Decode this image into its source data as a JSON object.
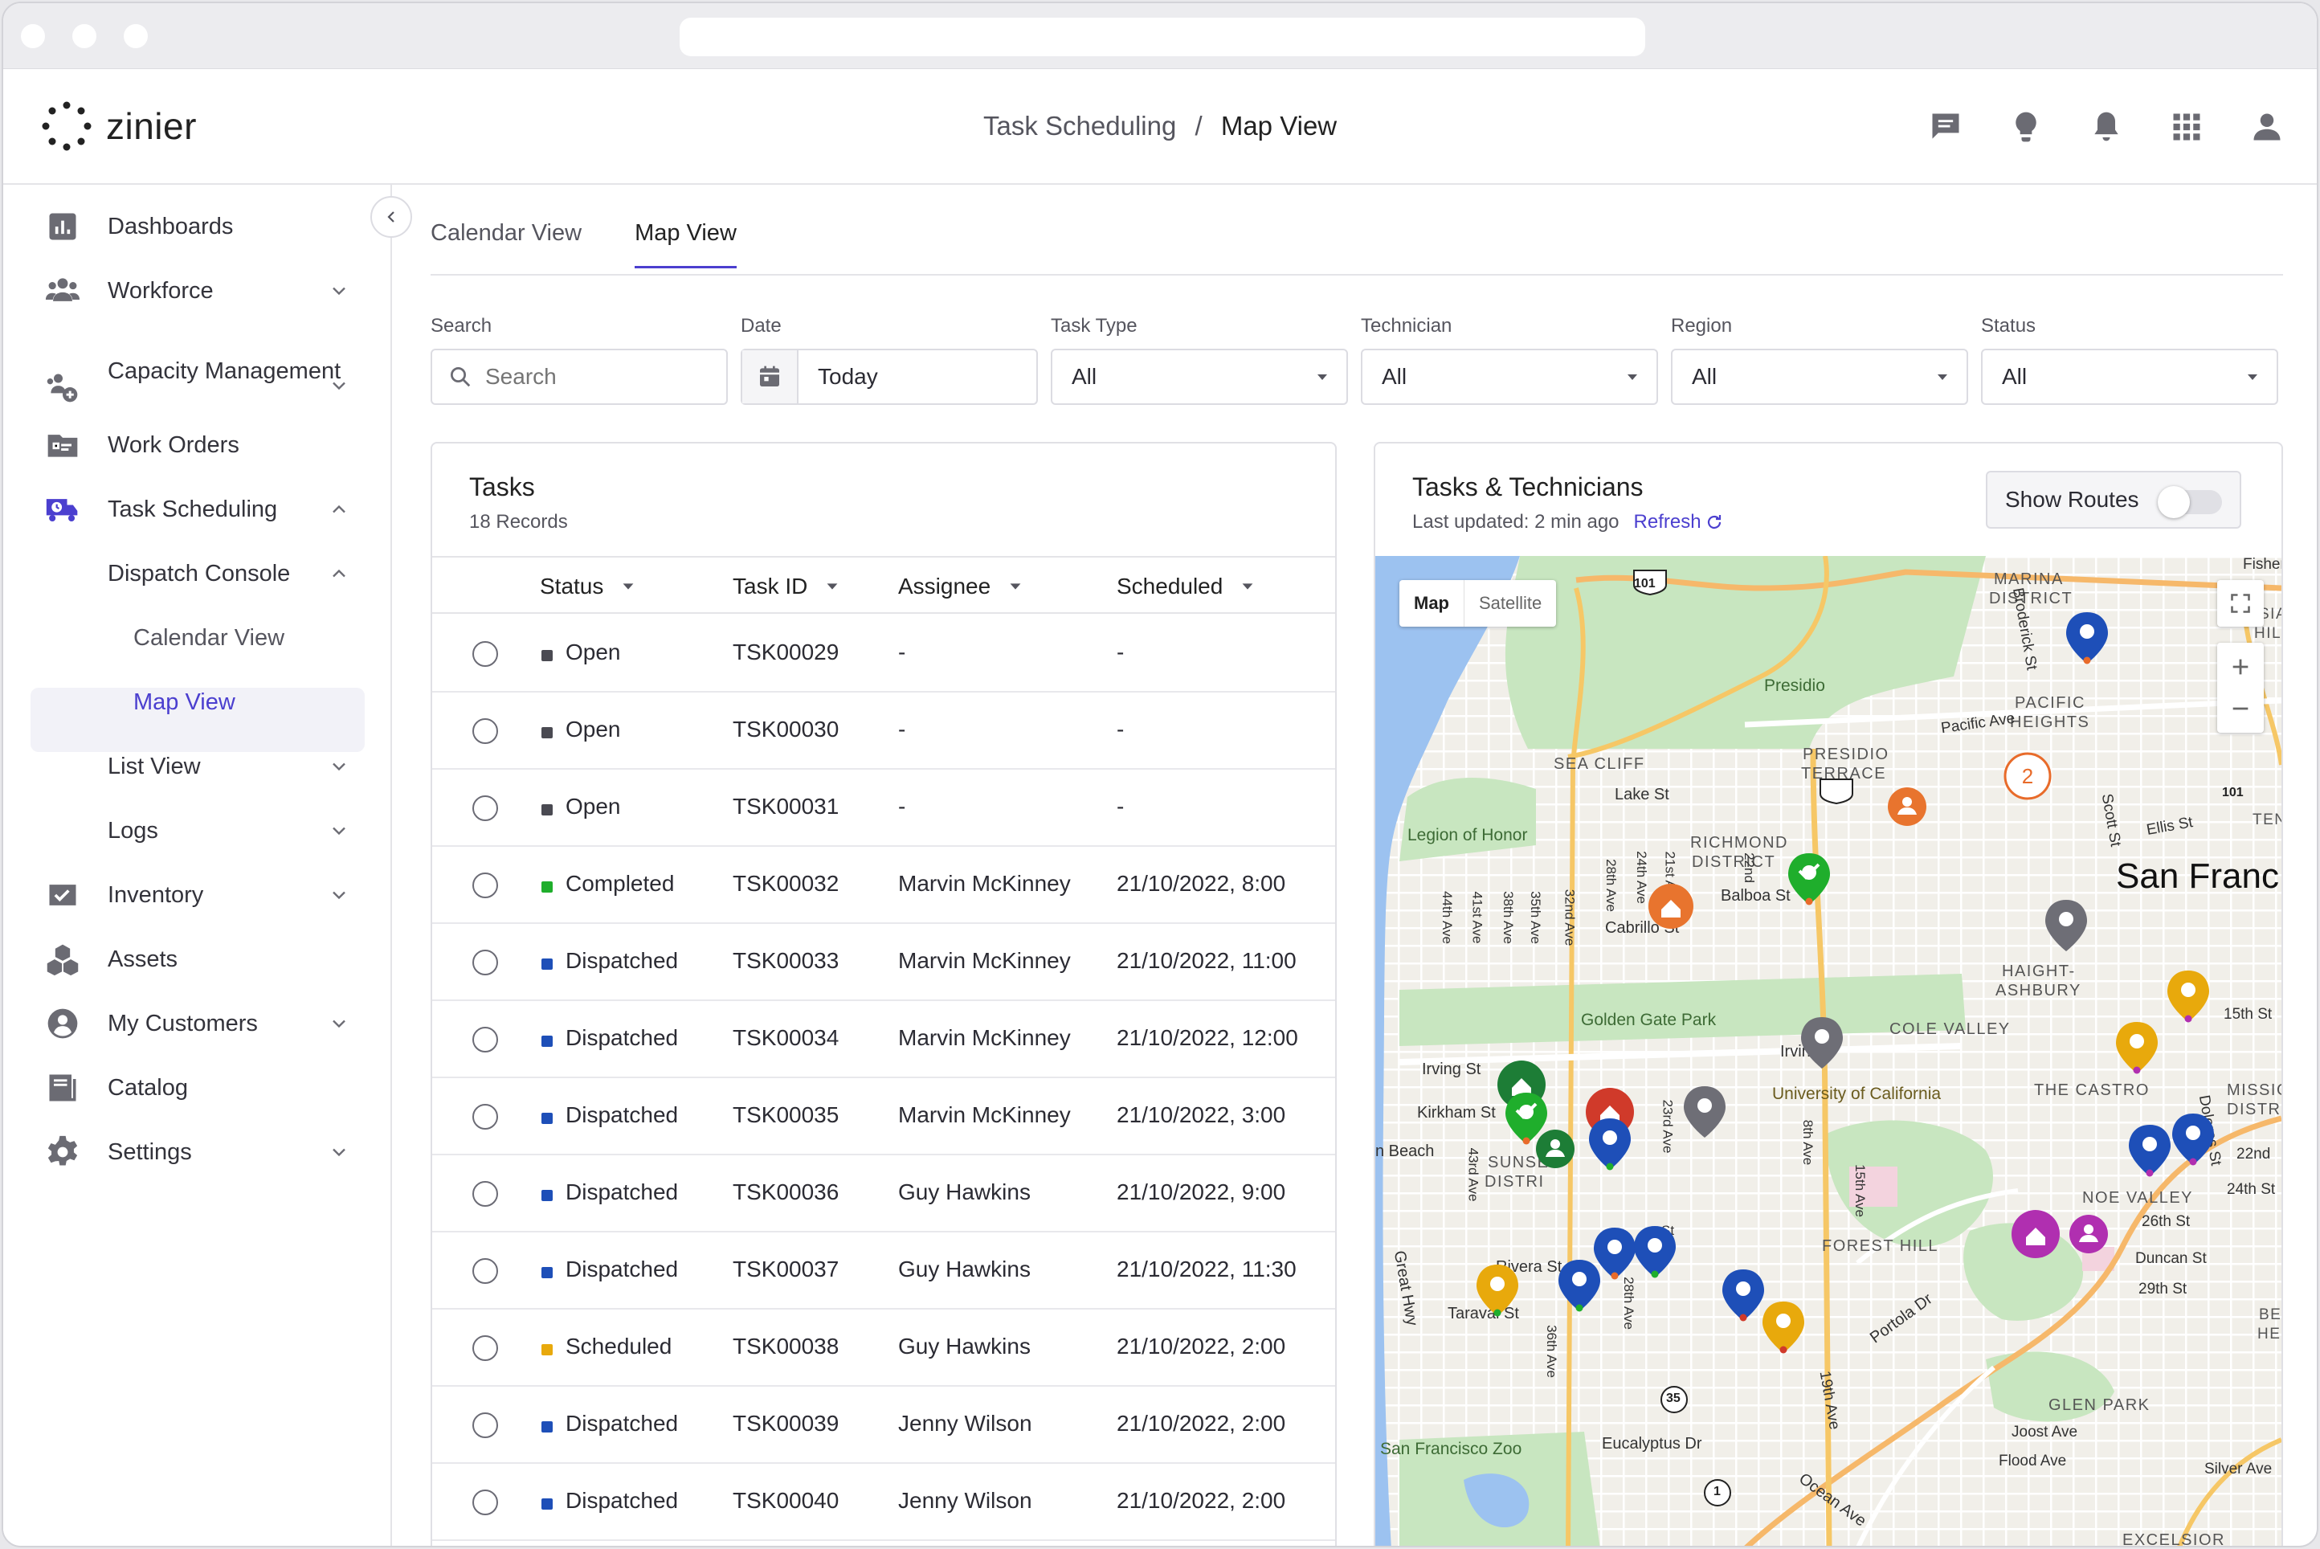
{
  "app": {
    "logo_text": "zinier"
  },
  "breadcrumb": {
    "parent": "Task Scheduling",
    "separator": "/",
    "current": "Map View"
  },
  "sidebar": {
    "items": [
      {
        "label": "Dashboards",
        "icon": "bar-chart-icon"
      },
      {
        "label": "Workforce",
        "icon": "people-icon"
      },
      {
        "label": "Capacity Management",
        "icon": "capacity-icon"
      },
      {
        "label": "Work Orders",
        "icon": "work-orders-icon"
      },
      {
        "label": "Task Scheduling",
        "icon": "truck-clock-icon"
      },
      {
        "label": "Dispatch Console"
      },
      {
        "label": "Calendar View"
      },
      {
        "label": "Map View"
      },
      {
        "label": "List View"
      },
      {
        "label": "Logs"
      },
      {
        "label": "Inventory",
        "icon": "inventory-icon"
      },
      {
        "label": "Assets",
        "icon": "cubes-icon"
      },
      {
        "label": "My Customers",
        "icon": "customer-icon"
      },
      {
        "label": "Catalog",
        "icon": "catalog-icon"
      },
      {
        "label": "Settings",
        "icon": "gear-icon"
      }
    ]
  },
  "tabs": {
    "calendar": "Calendar View",
    "map": "Map View"
  },
  "filters": {
    "search": {
      "label": "Search",
      "placeholder": "Search"
    },
    "date": {
      "label": "Date",
      "value": "Today"
    },
    "task_type": {
      "label": "Task Type",
      "value": "All"
    },
    "technician": {
      "label": "Technician",
      "value": "All"
    },
    "region": {
      "label": "Region",
      "value": "All"
    },
    "status": {
      "label": "Status",
      "value": "All"
    }
  },
  "tasks": {
    "title": "Tasks",
    "records": "18 Records",
    "columns": {
      "status": "Status",
      "task_id": "Task ID",
      "assignee": "Assignee",
      "scheduled": "Scheduled"
    },
    "rows": [
      {
        "status": "Open",
        "color": "#4a4a52",
        "id": "TSK00029",
        "assignee": "-",
        "scheduled": "-"
      },
      {
        "status": "Open",
        "color": "#4a4a52",
        "id": "TSK00030",
        "assignee": "-",
        "scheduled": "-"
      },
      {
        "status": "Open",
        "color": "#4a4a52",
        "id": "TSK00031",
        "assignee": "-",
        "scheduled": "-"
      },
      {
        "status": "Completed",
        "color": "#1fae2c",
        "id": "TSK00032",
        "assignee": "Marvin McKinney",
        "scheduled": "21/10/2022, 8:00"
      },
      {
        "status": "Dispatched",
        "color": "#1e4fb8",
        "id": "TSK00033",
        "assignee": "Marvin McKinney",
        "scheduled": "21/10/2022, 11:00"
      },
      {
        "status": "Dispatched",
        "color": "#1e4fb8",
        "id": "TSK00034",
        "assignee": "Marvin McKinney",
        "scheduled": "21/10/2022, 12:00"
      },
      {
        "status": "Dispatched",
        "color": "#1e4fb8",
        "id": "TSK00035",
        "assignee": "Marvin McKinney",
        "scheduled": "21/10/2022, 3:00"
      },
      {
        "status": "Dispatched",
        "color": "#1e4fb8",
        "id": "TSK00036",
        "assignee": "Guy Hawkins",
        "scheduled": "21/10/2022, 9:00"
      },
      {
        "status": "Dispatched",
        "color": "#1e4fb8",
        "id": "TSK00037",
        "assignee": "Guy Hawkins",
        "scheduled": "21/10/2022, 11:30"
      },
      {
        "status": "Scheduled",
        "color": "#e8a90c",
        "id": "TSK00038",
        "assignee": "Guy Hawkins",
        "scheduled": "21/10/2022, 2:00"
      },
      {
        "status": "Dispatched",
        "color": "#1e4fb8",
        "id": "TSK00039",
        "assignee": "Jenny Wilson",
        "scheduled": "21/10/2022, 2:00"
      },
      {
        "status": "Dispatched",
        "color": "#1e4fb8",
        "id": "TSK00040",
        "assignee": "Jenny Wilson",
        "scheduled": "21/10/2022, 2:00"
      }
    ]
  },
  "map_panel": {
    "title": "Tasks & Technicians",
    "last_updated": "Last updated: 2 min ago",
    "refresh": "Refresh",
    "show_routes": "Show Routes",
    "show_routes_on": false,
    "map_type": {
      "map": "Map",
      "satellite": "Satellite"
    },
    "cluster_count": "2",
    "labels": {
      "presidio": "Presidio",
      "marina": "MARINA",
      "district": "DISTRICT",
      "pacific": "PACIFIC",
      "heights": "HEIGHTS",
      "sea_cliff": "SEA CLIFF",
      "presidio_terrace": "PRESIDIO",
      "terrace": "TERRACE",
      "lake_st": "Lake St",
      "legion": "Legion of Honor",
      "richmond": "RICHMOND",
      "richmond_district": "DISTRICT",
      "san_francisco": "San Franc",
      "balboa": "Balboa St",
      "cabrillo": "Cabrillo St",
      "golden_gate_park": "Golden Gate Park",
      "haight": "HAIGHT-",
      "ashbury": "ASHBURY",
      "cole_valley": "COLE VALLEY",
      "irving": "Irving St",
      "irving2": "Irving",
      "kirkham": "Kirkham St",
      "ucsf": "University of California",
      "castro": "THE CASTRO",
      "mission": "MISSION",
      "mission_district": "DISTRICT",
      "beach": "n Beach",
      "sunset": "SUNSET",
      "sunset_district": "DISTRI",
      "noe": "NOE VALLEY",
      "forest_hill": "FOREST HILL",
      "rivera": "Rivera St",
      "taraval": "Taraval St",
      "great_hwy": "Great Hwy",
      "zoo": "San Francisco Zoo",
      "eucalyptus": "Eucalyptus Dr",
      "glen_park": "GLEN PARK",
      "joost": "Joost Ave",
      "flood": "Flood Ave",
      "silver": "Silver Ave",
      "ocean": "Ocean Ave",
      "excelsior": "EXCELSIOR",
      "portola": "Portola Dr",
      "pacific_ave": "Pacific Ave",
      "broderick": "Broderick St",
      "ellis": "Ellis St",
      "scott": "Scott St",
      "st_15th": "15th St",
      "st_24th": "24th St",
      "st_22nd": "22nd",
      "st_26th": "26th St",
      "st_29th": "29th St",
      "duncan": "Duncan St",
      "dolores": "Dolores St",
      "ave_19": "19th Ave",
      "ave_15": "15th Ave",
      "ave_8": "8th Ave",
      "ave_23": "23rd Ave",
      "ave_28": "28th Ave",
      "ave_24": "24th Ave",
      "ave_21": "21st Ave",
      "ave_32": "32nd Ave",
      "ave_35": "35th Ave",
      "ave_38": "38th Ave",
      "ave_41": "41st Ave",
      "ave_44": "44th Ave",
      "ave_43": "43rd Ave",
      "ave_36": "36th Ave",
      "ave_22": "22nd",
      "hw101": "101",
      "hw101b": "101",
      "hw35": "35",
      "hw1": "1",
      "fisherman": "Fisherman",
      "tend": "TEND",
      "sia": "SIA",
      "hill": "HILL",
      "bern": "BER",
      "hei": "HEI",
      "st_mission": "St"
    }
  },
  "colors": {
    "accent": "#4b3fcf",
    "dispatched": "#1e4fb8",
    "completed": "#1fae2c",
    "scheduled": "#e8a90c",
    "open": "#4a4a52"
  }
}
